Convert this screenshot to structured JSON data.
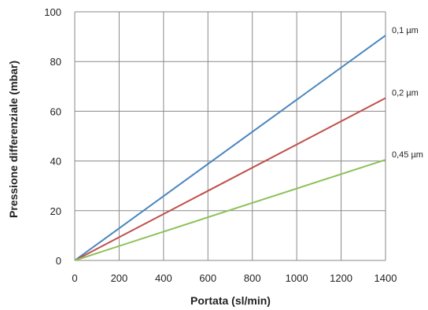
{
  "chart_data": {
    "type": "line",
    "title": "",
    "xlabel": "Portata (sl/min)",
    "ylabel": "Pressione differenziale (mbar)",
    "xlim": [
      0,
      1400
    ],
    "ylim": [
      0,
      100
    ],
    "xticks": [
      0,
      200,
      400,
      600,
      800,
      1000,
      1200,
      1400
    ],
    "yticks": [
      0,
      20,
      40,
      60,
      80,
      100
    ],
    "grid": true,
    "legend": "right, at line ends",
    "series": [
      {
        "name": "0,1 µm",
        "color": "#4a86bf",
        "x": [
          0,
          1400
        ],
        "y": [
          0,
          90.5
        ]
      },
      {
        "name": "0,2 µm",
        "color": "#c0504d",
        "x": [
          0,
          1400
        ],
        "y": [
          0,
          65.3
        ]
      },
      {
        "name": "0,45 µm",
        "color": "#8dc159",
        "x": [
          0,
          1400
        ],
        "y": [
          0,
          40.5
        ]
      }
    ]
  }
}
